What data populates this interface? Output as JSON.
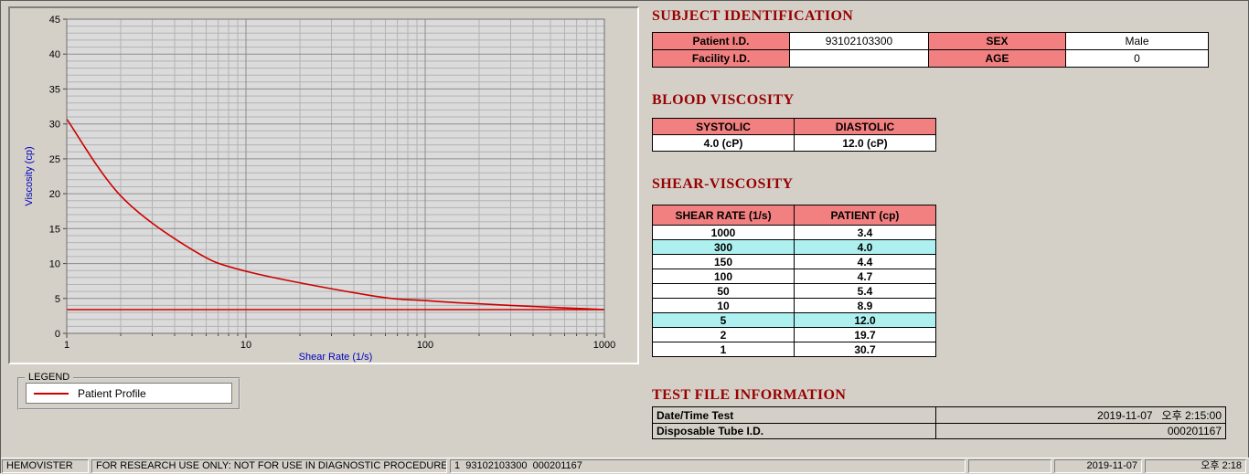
{
  "chart_data": {
    "type": "line",
    "title": "",
    "xlabel": "Shear Rate (1/s)",
    "ylabel": "Viscosity (cp)",
    "x_scale": "log",
    "xlim": [
      1,
      1000
    ],
    "ylim": [
      0,
      45
    ],
    "y_major_step": 5,
    "x_ticks": [
      1,
      10,
      100,
      1000
    ],
    "grid": "on",
    "series": [
      {
        "name": "Patient Profile",
        "color": "#cc0000",
        "x": [
          1,
          2,
          5,
          10,
          50,
          100,
          150,
          300,
          1000
        ],
        "y": [
          30.7,
          19.7,
          12.0,
          8.9,
          5.4,
          4.7,
          4.4,
          4.0,
          3.4
        ]
      }
    ],
    "baseline": {
      "value": 3.4,
      "color": "#cc0000"
    },
    "legend": {
      "title": "LEGEND",
      "position": "below-chart",
      "entries": [
        {
          "label": "Patient Profile",
          "color": "#cc0000"
        }
      ]
    }
  },
  "subject": {
    "title": "SUBJECT IDENTIFICATION",
    "rows": [
      {
        "label1": "Patient I.D.",
        "value1": "93102103300",
        "label2": "SEX",
        "value2": "Male"
      },
      {
        "label1": "Facility I.D.",
        "value1": "",
        "label2": "AGE",
        "value2": "0"
      }
    ]
  },
  "blood_viscosity": {
    "title": "BLOOD VISCOSITY",
    "headers": [
      "SYSTOLIC",
      "DIASTOLIC"
    ],
    "values": [
      "4.0 (cP)",
      "12.0 (cP)"
    ]
  },
  "shear_viscosity": {
    "title": "SHEAR-VISCOSITY",
    "headers": [
      "SHEAR RATE (1/s)",
      "PATIENT (cp)"
    ],
    "rows": [
      {
        "rate": "1000",
        "value": "3.4",
        "highlight": false
      },
      {
        "rate": "300",
        "value": "4.0",
        "highlight": true
      },
      {
        "rate": "150",
        "value": "4.4",
        "highlight": false
      },
      {
        "rate": "100",
        "value": "4.7",
        "highlight": false
      },
      {
        "rate": "50",
        "value": "5.4",
        "highlight": false
      },
      {
        "rate": "10",
        "value": "8.9",
        "highlight": false
      },
      {
        "rate": "5",
        "value": "12.0",
        "highlight": true
      },
      {
        "rate": "2",
        "value": "19.7",
        "highlight": false
      },
      {
        "rate": "1",
        "value": "30.7",
        "highlight": false
      }
    ]
  },
  "test_file": {
    "title": "TEST FILE INFORMATION",
    "rows": [
      {
        "label": "Date/Time Test",
        "value": "2019-11-07   오후 2:15:00"
      },
      {
        "label": "Disposable Tube I.D.",
        "value": "000201167"
      }
    ]
  },
  "status_bar": {
    "app": "HEMOVISTER",
    "notice": "FOR RESEARCH USE ONLY: NOT FOR USE IN DIAGNOSTIC PROCEDURES",
    "record": "1  93102103300  000201167",
    "empty": "",
    "date": "2019-11-07",
    "time": "오후 2:18"
  },
  "colors": {
    "window_bg": "#d4d0c8",
    "section_title": "#990000",
    "table_label_bg": "#f38080",
    "highlight_bg": "#aef0f0",
    "profile_line": "#cc0000",
    "axis_label": "#0000bb"
  }
}
